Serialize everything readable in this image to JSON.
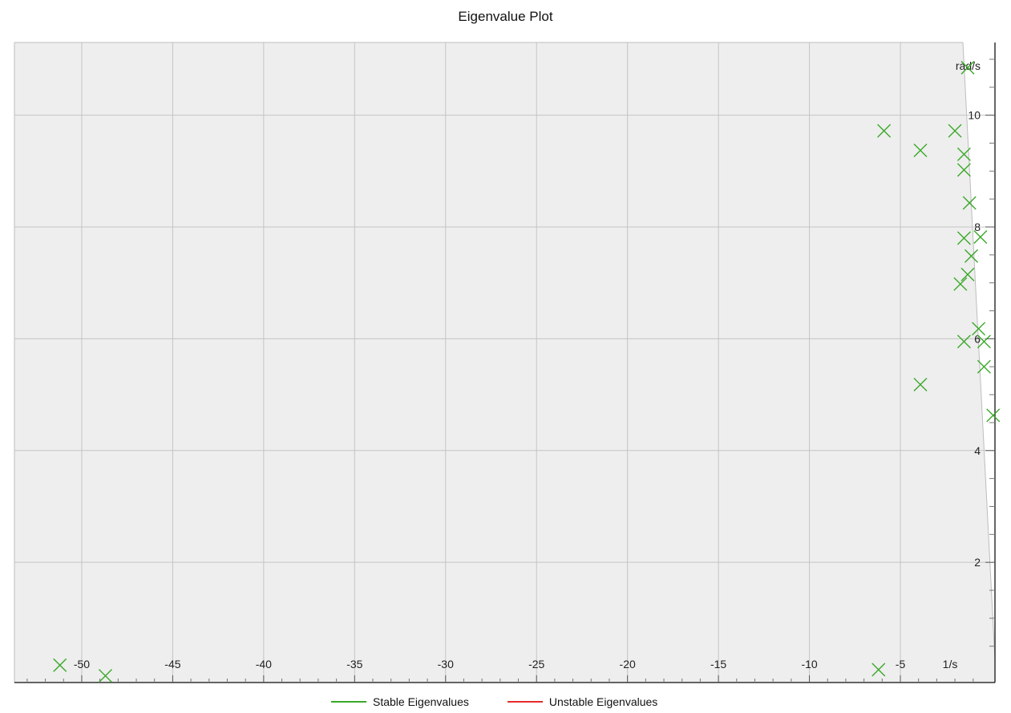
{
  "chart_data": {
    "type": "scatter",
    "title": "Eigenvalue Plot",
    "xlabel": "1/s",
    "ylabel": "rad/s",
    "xlim": [
      -53.7,
      0.2
    ],
    "ylim": [
      -0.15,
      11.3
    ],
    "x_ticks": [
      -50,
      -45,
      -40,
      -35,
      -30,
      -25,
      -20,
      -15,
      -10,
      -5
    ],
    "y_ticks": [
      2,
      4,
      6,
      8,
      10
    ],
    "grid": true,
    "legend_position": "bottom",
    "colors": {
      "stable": "#3aa829",
      "unstable": "#e52b2b",
      "plot_bg": "#eeeeee",
      "grid": "#c4c4c4"
    },
    "series": [
      {
        "name": "Stable Eigenvalues",
        "marker": "x",
        "points": [
          [
            -51.2,
            0.16
          ],
          [
            -48.7,
            -0.03
          ],
          [
            -6.2,
            0.08
          ],
          [
            -1.3,
            10.85
          ],
          [
            -5.9,
            9.72
          ],
          [
            -3.9,
            9.37
          ],
          [
            -2.0,
            9.72
          ],
          [
            -1.5,
            9.3
          ],
          [
            -1.5,
            9.02
          ],
          [
            -1.2,
            8.43
          ],
          [
            -1.5,
            7.8
          ],
          [
            -0.6,
            7.82
          ],
          [
            -1.1,
            7.48
          ],
          [
            -1.3,
            7.15
          ],
          [
            -1.7,
            6.98
          ],
          [
            -0.7,
            6.18
          ],
          [
            -1.5,
            5.95
          ],
          [
            -0.4,
            5.95
          ],
          [
            -0.4,
            5.5
          ],
          [
            -3.9,
            5.18
          ],
          [
            0.1,
            4.63
          ]
        ]
      },
      {
        "name": "Unstable Eigenvalues",
        "marker": "x",
        "points": []
      }
    ]
  }
}
